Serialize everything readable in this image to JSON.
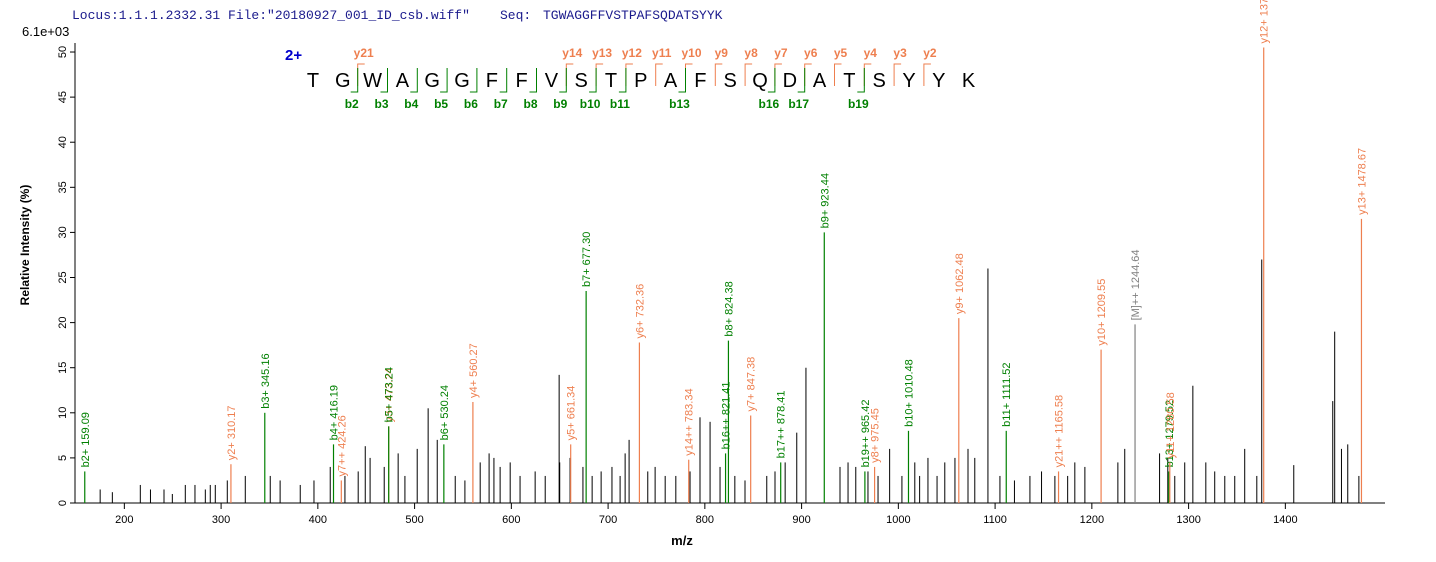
{
  "chart_data": {
    "type": "spectrum",
    "header": {
      "file": "Locus:1.1.1.2332.31 File:\"20180927_001_ID_csb.wiff\"",
      "seq_label": "Seq:",
      "seq": "TGWAGGFFVSTPAFSQDATSYYK"
    },
    "scale_label": "6.1e+03",
    "ylabel": "Relative  Intensity (%)",
    "xlabel": "m/z",
    "xlim": [
      149,
      1503
    ],
    "ylim": [
      0,
      51
    ],
    "xticks": [
      200,
      300,
      400,
      500,
      600,
      700,
      800,
      900,
      1000,
      1100,
      1200,
      1300,
      1400
    ],
    "yticks": [
      0,
      5,
      10,
      15,
      20,
      25,
      30,
      35,
      40,
      45,
      50
    ],
    "sequence": {
      "charge": "2+",
      "residues": [
        "T",
        "G",
        "W",
        "A",
        "G",
        "G",
        "F",
        "F",
        "V",
        "S",
        "T",
        "P",
        "A",
        "F",
        "S",
        "Q",
        "D",
        "A",
        "T",
        "S",
        "Y",
        "Y",
        "K"
      ],
      "y_ions": [
        {
          "label": "y21",
          "n": 21
        },
        {
          "label": "y14",
          "n": 14
        },
        {
          "label": "y13",
          "n": 13
        },
        {
          "label": "y12",
          "n": 12
        },
        {
          "label": "y11",
          "n": 11
        },
        {
          "label": "y10",
          "n": 10
        },
        {
          "label": "y9",
          "n": 9
        },
        {
          "label": "y8",
          "n": 8
        },
        {
          "label": "y7",
          "n": 7
        },
        {
          "label": "y6",
          "n": 6
        },
        {
          "label": "y5",
          "n": 5
        },
        {
          "label": "y4",
          "n": 4
        },
        {
          "label": "y3",
          "n": 3
        },
        {
          "label": "y2",
          "n": 2
        }
      ],
      "b_ions": [
        {
          "label": "b2",
          "n": 2
        },
        {
          "label": "b3",
          "n": 3
        },
        {
          "label": "b4",
          "n": 4
        },
        {
          "label": "b5",
          "n": 5
        },
        {
          "label": "b6",
          "n": 6
        },
        {
          "label": "b7",
          "n": 7
        },
        {
          "label": "b8",
          "n": 8
        },
        {
          "label": "b9",
          "n": 9
        },
        {
          "label": "b10",
          "n": 10
        },
        {
          "label": "b11",
          "n": 11
        },
        {
          "label": "b13",
          "n": 13
        },
        {
          "label": "b16",
          "n": 16
        },
        {
          "label": "b17",
          "n": 17
        },
        {
          "label": "b19",
          "n": 19
        }
      ]
    },
    "annotated_peaks": {
      "x": [
        159.09,
        310.17,
        345.16,
        416.19,
        424.26,
        473.24,
        473.24,
        530.24,
        560.27,
        661.34,
        677.3,
        732.36,
        783.34,
        821.41,
        824.38,
        847.38,
        878.41,
        923.44,
        965.42,
        975.45,
        1010.48,
        1062.48,
        1111.52,
        1165.58,
        1209.55,
        1244.64,
        1279.52,
        1280.58,
        1377.64,
        1478.67
      ],
      "values": [
        3.5,
        4.3,
        10,
        6.5,
        2.5,
        8.5,
        8.5,
        6.5,
        11.2,
        6.5,
        23.5,
        17.8,
        4.8,
        5.5,
        18,
        9.7,
        4.5,
        30,
        3.5,
        4,
        8,
        20.5,
        8,
        3.5,
        17,
        19.8,
        3.5,
        4.5,
        50.5,
        31.5
      ],
      "colors": [
        "#008000",
        "#ee7f4f",
        "#008000",
        "#008000",
        "#ee7f4f",
        "#ee7f4f",
        "#008000",
        "#008000",
        "#ee7f4f",
        "#ee7f4f",
        "#008000",
        "#ee7f4f",
        "#ee7f4f",
        "#008000",
        "#008000",
        "#ee7f4f",
        "#008000",
        "#008000",
        "#008000",
        "#ee7f4f",
        "#008000",
        "#ee7f4f",
        "#008000",
        "#ee7f4f",
        "#ee7f4f",
        "#808080",
        "#008000",
        "#ee7f4f",
        "#ee7f4f",
        "#ee7f4f"
      ],
      "labels": [
        "b2+ 159.09",
        "y2+ 310.17",
        "b3+ 345.16",
        "b4+ 416.19",
        "y7++ 424.26",
        "y3+ 473.24",
        "b5+ 473.24",
        "b6+ 530.24",
        "y4+ 560.27",
        "y5+ 661.34",
        "b7+ 677.30",
        "y6+ 732.36",
        "y14++ 783.34",
        "b16++ 821.41",
        "b8+ 824.38",
        "y7+ 847.38",
        "b17++ 878.41",
        "b9+ 923.44",
        "b19++ 965.42",
        "y8+ 975.45",
        "b10+ 1010.48",
        "y9+ 1062.48",
        "b11+ 1111.52",
        "y21++ 1165.58",
        "y10+ 1209.55",
        "[M]++ 1244.64",
        "b13+ 1279.52",
        "y11+ 1280.58",
        "y12+ 1377.64",
        "y13+ 1478.67"
      ]
    },
    "other_peaks": {
      "color": "#000000",
      "x": [
        175,
        187.6,
        216.5,
        227,
        241,
        249.6,
        263,
        273,
        283.7,
        288.8,
        294,
        306.4,
        325,
        350.8,
        361,
        381.8,
        396,
        412.8,
        428,
        441.7,
        449,
        454,
        468.6,
        483,
        490,
        502.7,
        514,
        523.4,
        542,
        552,
        567.8,
        577,
        582,
        588.4,
        598.8,
        609,
        624.6,
        635,
        649.4,
        650,
        660.7,
        674,
        683.5,
        692.8,
        704,
        712.4,
        717.6,
        721.7,
        741,
        748.6,
        759,
        770,
        784.7,
        795,
        805.4,
        815.7,
        831,
        841.5,
        864,
        872.5,
        883,
        895,
        904.5,
        939.7,
        948,
        956,
        968.6,
        979,
        991,
        1003.7,
        1017,
        1022,
        1030.6,
        1040,
        1048,
        1058.5,
        1072,
        1079,
        1092.6,
        1105,
        1120,
        1136,
        1148,
        1161.8,
        1175,
        1182.4,
        1192.8,
        1226.9,
        1234,
        1270,
        1278.5,
        1285.7,
        1296,
        1304.4,
        1317.8,
        1327,
        1337.4,
        1347.7,
        1358,
        1370.5,
        1375.6,
        1408.7,
        1449,
        1451,
        1458,
        1464.5,
        1476
      ],
      "values": [
        1.5,
        1.2,
        2,
        1.5,
        1.5,
        1,
        2,
        2,
        1.5,
        2,
        2,
        2.5,
        3,
        3,
        2.5,
        2,
        2.5,
        4,
        3,
        3.5,
        6.3,
        5,
        4,
        5.5,
        3,
        6,
        10.5,
        7,
        3,
        2.5,
        4.5,
        5.5,
        5,
        4,
        4.5,
        3,
        3.5,
        3,
        14.2,
        4.5,
        5,
        4,
        3,
        3.5,
        4,
        3,
        5.5,
        7,
        3.5,
        4,
        3,
        3,
        3.5,
        9.5,
        9,
        4,
        3,
        2.5,
        3,
        3.5,
        4.5,
        7.8,
        15,
        4,
        4.5,
        4,
        3.5,
        3,
        6,
        3,
        4.5,
        3,
        5,
        3,
        4.5,
        5,
        6,
        5,
        26,
        3,
        2.5,
        3,
        3.5,
        3,
        3,
        4.5,
        4,
        4.5,
        6,
        5.5,
        5,
        3,
        4.5,
        13,
        4.5,
        3.5,
        3,
        3,
        6,
        3,
        27,
        4.2,
        11.3,
        19,
        6,
        6.5,
        3
      ]
    }
  }
}
